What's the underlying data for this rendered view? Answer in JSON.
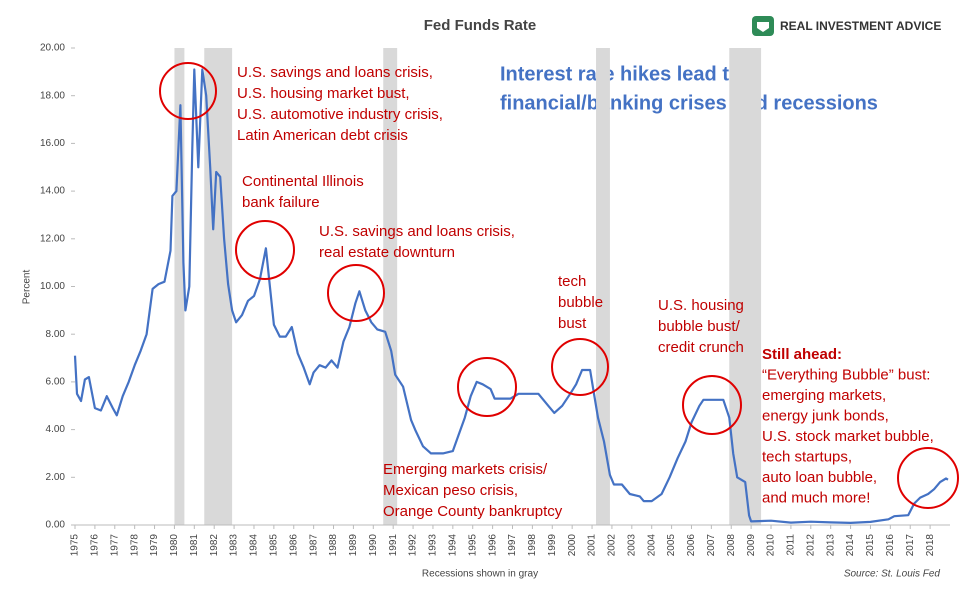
{
  "chart_data": {
    "type": "line",
    "title": "Fed Funds Rate",
    "brand": "REAL INVESTMENT ADVICE",
    "headline": [
      "Interest rate hikes lead to",
      "financial/banking crises and recessions"
    ],
    "y_label": "Percent",
    "x_label": "Recessions shown in gray",
    "source": "Source: St. Louis Fed",
    "xlim": [
      1975,
      2019
    ],
    "ylim": [
      0,
      20
    ],
    "xticks": [
      1975,
      1976,
      1977,
      1978,
      1979,
      1980,
      1981,
      1982,
      1983,
      1984,
      1985,
      1986,
      1987,
      1988,
      1989,
      1990,
      1991,
      1992,
      1993,
      1994,
      1995,
      1996,
      1997,
      1998,
      1999,
      2000,
      2001,
      2002,
      2003,
      2004,
      2005,
      2006,
      2007,
      2008,
      2009,
      2010,
      2011,
      2012,
      2013,
      2014,
      2015,
      2016,
      2017,
      2018
    ],
    "yticks": [
      {
        "value": 0,
        "label": "0.00"
      },
      {
        "value": 2,
        "label": "2.00"
      },
      {
        "value": 4,
        "label": "4.00"
      },
      {
        "value": 6,
        "label": "6.00"
      },
      {
        "value": 8,
        "label": "8.00"
      },
      {
        "value": 10,
        "label": "10.00"
      },
      {
        "value": 12,
        "label": "12.00"
      },
      {
        "value": 14,
        "label": "14.00"
      },
      {
        "value": 16,
        "label": "16.00"
      },
      {
        "value": 18,
        "label": "18.00"
      },
      {
        "value": 20,
        "label": "20.00"
      }
    ],
    "recessions": [
      [
        1980.0,
        1980.5
      ],
      [
        1981.5,
        1982.9
      ],
      [
        1990.5,
        1991.2
      ],
      [
        2001.2,
        2001.9
      ],
      [
        2007.9,
        2009.5
      ]
    ],
    "recession_color": "#d9d9d9",
    "series": [
      {
        "name": "Fed Funds Rate",
        "color": "#4472c4",
        "x": [
          1975.0,
          1975.1,
          1975.3,
          1975.5,
          1975.7,
          1976.0,
          1976.3,
          1976.6,
          1976.9,
          1977.1,
          1977.4,
          1977.7,
          1978.0,
          1978.3,
          1978.6,
          1978.9,
          1979.2,
          1979.5,
          1979.8,
          1979.9,
          1980.1,
          1980.3,
          1980.45,
          1980.55,
          1980.75,
          1980.9,
          1981.0,
          1981.2,
          1981.4,
          1981.6,
          1981.8,
          1981.95,
          1982.1,
          1982.3,
          1982.5,
          1982.7,
          1982.9,
          1983.1,
          1983.4,
          1983.7,
          1984.0,
          1984.3,
          1984.6,
          1984.8,
          1985.0,
          1985.3,
          1985.6,
          1985.9,
          1986.2,
          1986.5,
          1986.8,
          1987.0,
          1987.3,
          1987.6,
          1987.9,
          1988.2,
          1988.5,
          1988.8,
          1989.1,
          1989.3,
          1989.6,
          1989.9,
          1990.2,
          1990.6,
          1990.9,
          1991.1,
          1991.5,
          1991.9,
          1992.1,
          1992.5,
          1992.9,
          1993.5,
          1994.0,
          1994.3,
          1994.6,
          1994.9,
          1995.2,
          1995.5,
          1995.9,
          1996.1,
          1996.5,
          1996.9,
          1997.3,
          1997.8,
          1998.3,
          1998.8,
          1999.1,
          1999.5,
          1999.9,
          2000.2,
          2000.5,
          2000.9,
          2001.1,
          2001.3,
          2001.6,
          2001.9,
          2002.1,
          2002.5,
          2002.9,
          2003.4,
          2003.6,
          2004.0,
          2004.5,
          2004.9,
          2005.3,
          2005.7,
          2006.0,
          2006.4,
          2006.6,
          2007.0,
          2007.6,
          2007.9,
          2008.1,
          2008.3,
          2008.7,
          2008.9,
          2009.0,
          2010.0,
          2011.0,
          2012.0,
          2013.0,
          2014.0,
          2015.0,
          2015.9,
          2016.2,
          2016.9,
          2017.2,
          2017.5,
          2017.9,
          2018.2,
          2018.5,
          2018.8,
          2018.9
        ],
        "values": [
          7.1,
          5.5,
          5.2,
          6.1,
          6.2,
          4.9,
          4.8,
          5.4,
          4.9,
          4.6,
          5.4,
          6.0,
          6.7,
          7.3,
          8.0,
          9.9,
          10.1,
          10.2,
          11.5,
          13.8,
          14.0,
          17.6,
          11.0,
          9.0,
          10.0,
          15.8,
          19.1,
          15.0,
          19.1,
          18.0,
          15.0,
          12.4,
          14.8,
          14.6,
          12.0,
          10.1,
          9.0,
          8.5,
          8.8,
          9.4,
          9.6,
          10.3,
          11.6,
          10.0,
          8.4,
          7.9,
          7.9,
          8.3,
          7.2,
          6.6,
          5.9,
          6.4,
          6.7,
          6.6,
          6.9,
          6.6,
          7.7,
          8.3,
          9.3,
          9.8,
          9.0,
          8.5,
          8.2,
          8.1,
          7.3,
          6.3,
          5.8,
          4.4,
          4.0,
          3.3,
          3.0,
          3.0,
          3.1,
          3.8,
          4.5,
          5.4,
          6.0,
          5.9,
          5.7,
          5.3,
          5.3,
          5.3,
          5.5,
          5.5,
          5.5,
          5.0,
          4.7,
          5.0,
          5.5,
          5.9,
          6.5,
          6.5,
          5.5,
          4.5,
          3.5,
          2.1,
          1.7,
          1.7,
          1.3,
          1.2,
          1.0,
          1.0,
          1.3,
          2.0,
          2.8,
          3.5,
          4.3,
          5.0,
          5.25,
          5.25,
          5.25,
          4.5,
          3.0,
          2.0,
          1.8,
          0.4,
          0.15,
          0.18,
          0.1,
          0.14,
          0.11,
          0.09,
          0.13,
          0.24,
          0.37,
          0.41,
          0.9,
          1.15,
          1.3,
          1.5,
          1.8,
          1.95,
          1.9
        ]
      }
    ],
    "annotations": [
      [
        "U.S. savings and loans crisis,",
        "U.S. housing market bust,",
        "U.S. automotive industry crisis,",
        "Latin American debt crisis"
      ],
      [
        "Continental Illinois",
        "bank failure"
      ],
      [
        "U.S. savings and loans crisis,",
        "real estate downturn"
      ],
      [
        "Emerging markets crisis/",
        "Mexican peso crisis,",
        "Orange County bankruptcy"
      ],
      [
        "tech",
        "bubble",
        "bust"
      ],
      [
        "U.S. housing",
        "bubble bust/",
        "credit crunch"
      ],
      [
        "Still ahead:",
        "“Everything Bubble” bust:",
        "emerging markets,",
        "energy junk bonds,",
        "U.S. stock market bubble,",
        "tech startups,",
        "auto loan bubble,",
        "and much more!"
      ]
    ]
  }
}
